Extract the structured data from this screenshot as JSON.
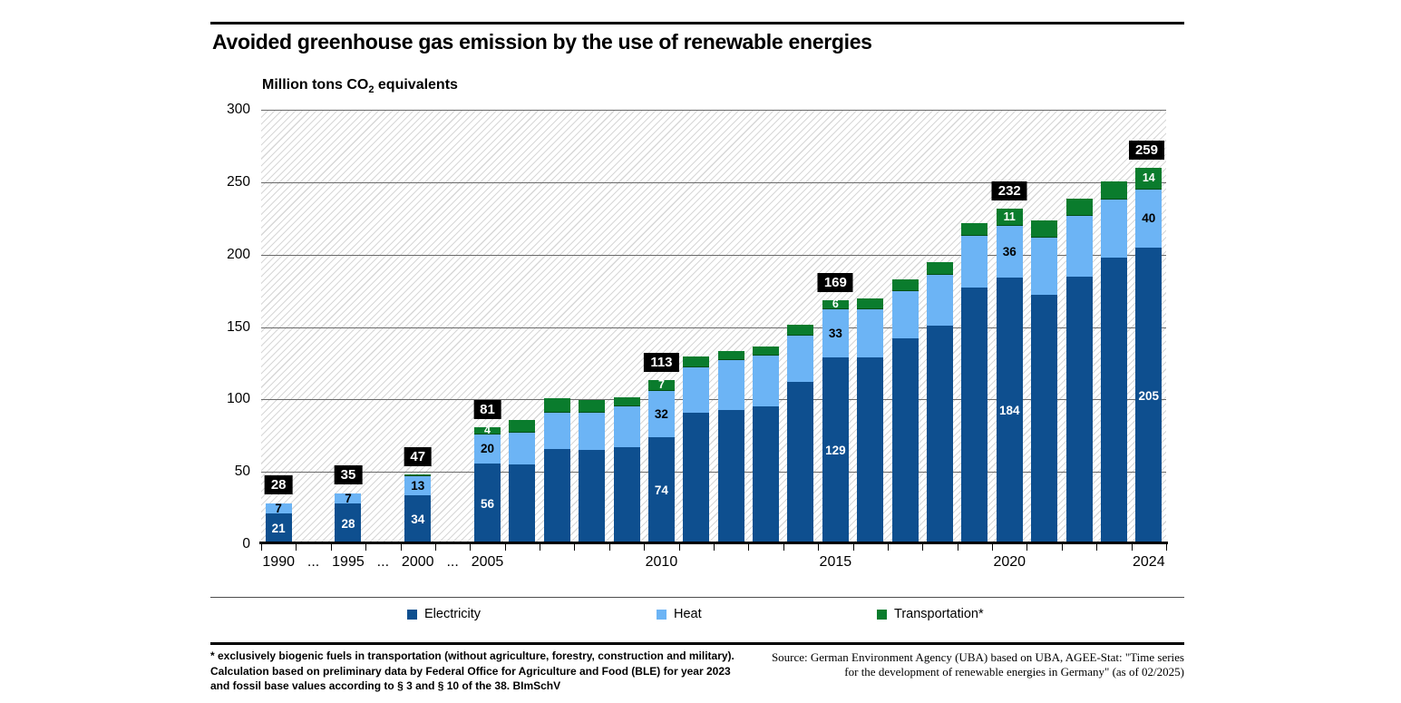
{
  "header": {
    "title": "Avoided greenhouse gas emission by the use of renewable energies",
    "unit": {
      "prefix": "Million tons CO",
      "sub": "2",
      "suffix": " equivalents"
    }
  },
  "colors": {
    "electricity": "#0E4F8F",
    "heat": "#6CB4F5",
    "transport": "#0A7C2D",
    "total_badge_bg": "#000000",
    "total_badge_text": "#ffffff"
  },
  "chart_data": {
    "type": "bar",
    "stacked": true,
    "title": "Avoided greenhouse gas emission by the use of renewable energies",
    "ylabel": "Million tons CO2 equivalents",
    "xlabel": "",
    "ylim": [
      0,
      300
    ],
    "yticks": [
      0,
      50,
      100,
      150,
      200,
      250,
      300
    ],
    "grid": "horizontal gridlines, hatched plot background",
    "legend_position": "bottom",
    "series_keys": [
      "electricity",
      "heat",
      "transport"
    ],
    "slots": [
      {
        "year": "1990",
        "axis_label": "1990",
        "electricity": 21,
        "heat": 7,
        "transport": 0,
        "labels": {
          "electricity": "21",
          "heat": "7"
        },
        "total_label": "28"
      },
      {
        "gap": true,
        "axis_label": "..."
      },
      {
        "year": "1995",
        "axis_label": "1995",
        "electricity": 28,
        "heat": 7,
        "transport": 0,
        "labels": {
          "electricity": "28",
          "heat": "7"
        },
        "total_label": "35"
      },
      {
        "gap": true,
        "axis_label": "..."
      },
      {
        "year": "2000",
        "axis_label": "2000",
        "electricity": 34,
        "heat": 13,
        "transport": 0.5,
        "labels": {
          "electricity": "34",
          "heat": "13"
        },
        "total_label": "47"
      },
      {
        "gap": true,
        "axis_label": "..."
      },
      {
        "year": "2005",
        "axis_label": "2005",
        "electricity": 56,
        "heat": 20,
        "transport": 4,
        "labels": {
          "electricity": "56",
          "heat": "20",
          "transport": "4"
        },
        "total_label": "81"
      },
      {
        "year": "2006",
        "axis_label": "",
        "electricity": 55,
        "heat": 22,
        "transport": 8
      },
      {
        "year": "2007",
        "axis_label": "",
        "electricity": 66,
        "heat": 25,
        "transport": 9
      },
      {
        "year": "2008",
        "axis_label": "",
        "electricity": 65,
        "heat": 26,
        "transport": 8
      },
      {
        "year": "2009",
        "axis_label": "",
        "electricity": 67,
        "heat": 28,
        "transport": 6
      },
      {
        "year": "2010",
        "axis_label": "2010",
        "electricity": 74,
        "heat": 32,
        "transport": 7,
        "labels": {
          "electricity": "74",
          "heat": "32",
          "transport": "7"
        },
        "total_label": "113"
      },
      {
        "year": "2011",
        "axis_label": "",
        "electricity": 91,
        "heat": 31,
        "transport": 7
      },
      {
        "year": "2012",
        "axis_label": "",
        "electricity": 93,
        "heat": 34,
        "transport": 6
      },
      {
        "year": "2013",
        "axis_label": "",
        "electricity": 95,
        "heat": 35,
        "transport": 6
      },
      {
        "year": "2014",
        "axis_label": "",
        "electricity": 112,
        "heat": 32,
        "transport": 7
      },
      {
        "year": "2015",
        "axis_label": "2015",
        "electricity": 129,
        "heat": 33,
        "transport": 6,
        "labels": {
          "electricity": "129",
          "heat": "33",
          "transport": "6"
        },
        "total_label": "169"
      },
      {
        "year": "2016",
        "axis_label": "",
        "electricity": 129,
        "heat": 33,
        "transport": 7
      },
      {
        "year": "2017",
        "axis_label": "",
        "electricity": 142,
        "heat": 33,
        "transport": 7
      },
      {
        "year": "2018",
        "axis_label": "",
        "electricity": 151,
        "heat": 35,
        "transport": 8
      },
      {
        "year": "2019",
        "axis_label": "",
        "electricity": 177,
        "heat": 36,
        "transport": 8
      },
      {
        "year": "2020",
        "axis_label": "2020",
        "electricity": 184,
        "heat": 36,
        "transport": 11,
        "labels": {
          "electricity": "184",
          "heat": "36",
          "transport": "11"
        },
        "total_label": "232"
      },
      {
        "year": "2021",
        "axis_label": "",
        "electricity": 172,
        "heat": 40,
        "transport": 11
      },
      {
        "year": "2022",
        "axis_label": "",
        "electricity": 185,
        "heat": 42,
        "transport": 11
      },
      {
        "year": "2023",
        "axis_label": "",
        "electricity": 198,
        "heat": 40,
        "transport": 12
      },
      {
        "year": "2024",
        "axis_label": "2024",
        "electricity": 205,
        "heat": 40,
        "transport": 14,
        "labels": {
          "electricity": "205",
          "heat": "40",
          "transport": "14"
        },
        "total_label": "259"
      }
    ]
  },
  "legend": {
    "items": [
      {
        "key": "electricity",
        "label": "Electricity"
      },
      {
        "key": "heat",
        "label": "Heat"
      },
      {
        "key": "transport",
        "label": "Transportation*"
      }
    ]
  },
  "footnotes": {
    "lines": [
      "* exclusively biogenic fuels in transportation (without agriculture, forestry, construction and military).",
      "Calculation based on preliminary data by Federal Office for Agriculture and Food (BLE) for year 2023",
      "and fossil base values according to § 3 and § 10 of the 38. BImSchV"
    ]
  },
  "source": {
    "lines": [
      "Source: German Environment Agency (UBA) based on UBA, AGEE-Stat: \"Time series",
      "for the development of renewable energies in Germany\" (as of 02/2025)"
    ]
  }
}
